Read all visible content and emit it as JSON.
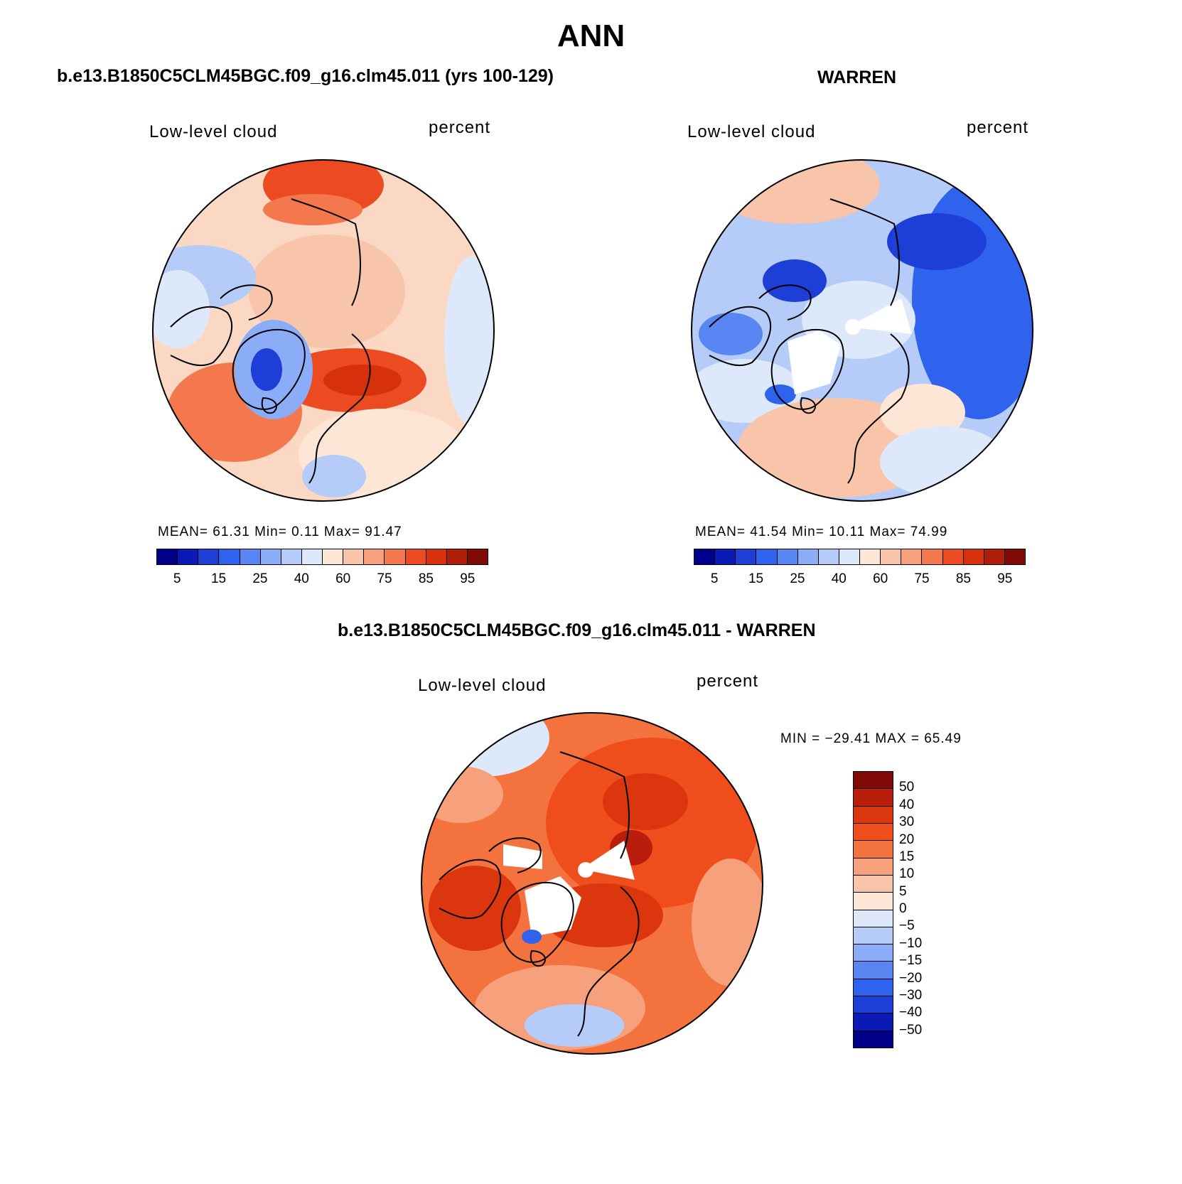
{
  "figure": {
    "main_title": "ANN",
    "diff_title": "b.e13.B1850C5CLM45BGC.f09_g16.clm45.011 - WARREN"
  },
  "panels": [
    {
      "id": "model",
      "title": "b.e13.B1850C5CLM45BGC.f09_g16.clm45.011 (yrs 100-129)",
      "variable": "Low-level cloud",
      "units": "percent",
      "stats": "MEAN=   61.31   Min=    0.11   Max=   91.47",
      "dominant_color": "#f8b999"
    },
    {
      "id": "obs",
      "title": "WARREN",
      "variable": "Low-level cloud",
      "units": "percent",
      "stats": "MEAN=   41.54   Min=   10.11   Max=   74.99",
      "dominant_color": "#c6d6f6"
    }
  ],
  "difference_panel": {
    "variable": "Low-level cloud",
    "units": "percent",
    "stats": "MIN = −29.41 MAX =   65.49",
    "dominant_color": "#f16a34"
  },
  "abs_colorbar": {
    "colors": [
      "#00008b",
      "#0b1ab4",
      "#1d3fd8",
      "#2f63ee",
      "#5886f2",
      "#8bacf6",
      "#b5cbf8",
      "#dde9fb",
      "#fde6d6",
      "#f8c4aa",
      "#f6a07c",
      "#f4784e",
      "#ec4b21",
      "#d6300d",
      "#b11d0b",
      "#7f0a06"
    ],
    "tick_labels": [
      "5",
      "15",
      "25",
      "40",
      "60",
      "75",
      "85",
      "95"
    ]
  },
  "diff_colorbar": {
    "colors_top_to_bottom": [
      "#7f0a06",
      "#b81e0b",
      "#dc360f",
      "#f04d1d",
      "#f4723e",
      "#f6a07c",
      "#f8c4aa",
      "#fde6d6",
      "#dde9fb",
      "#b5cbf8",
      "#8bacf6",
      "#5886f2",
      "#2f63ee",
      "#1d3fd8",
      "#0b1ab4",
      "#00008b"
    ],
    "tick_labels": [
      "50",
      "40",
      "30",
      "20",
      "15",
      "10",
      "5",
      "0",
      "−5",
      "−10",
      "−15",
      "−20",
      "−30",
      "−40",
      "−50"
    ]
  },
  "map_colors": {
    "land_outline": "#000000",
    "missing": "#ffffff"
  }
}
